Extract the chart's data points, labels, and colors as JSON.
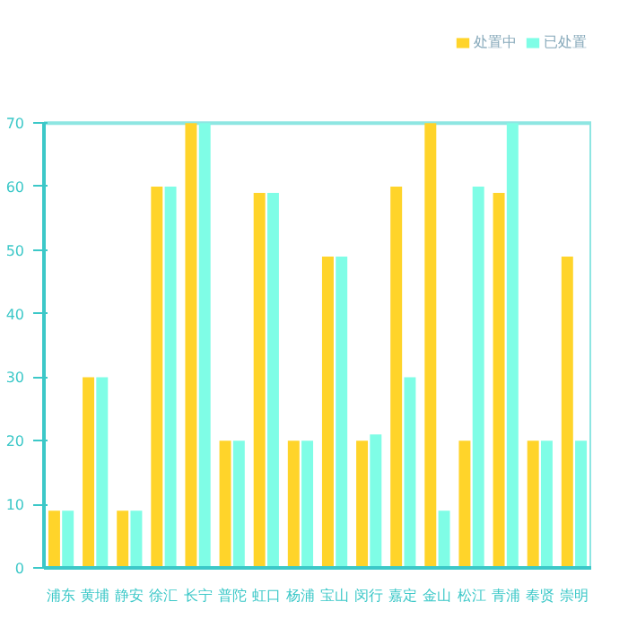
{
  "chart_data": {
    "type": "bar",
    "categories": [
      "浦东",
      "黄埔",
      "静安",
      "徐汇",
      "长宁",
      "普陀",
      "虹口",
      "杨浦",
      "宝山",
      "闵行",
      "嘉定",
      "金山",
      "松江",
      "青浦",
      "奉贤",
      "崇明"
    ],
    "series": [
      {
        "name": "处置中",
        "color": "#ffd42a",
        "values": [
          9,
          30,
          9,
          60,
          70,
          20,
          59,
          20,
          49,
          20,
          60,
          70,
          20,
          59,
          20,
          49
        ]
      },
      {
        "name": "已处置",
        "color": "#7ffde6",
        "values": [
          9,
          30,
          9,
          60,
          70,
          20,
          59,
          20,
          49,
          21,
          30,
          9,
          60,
          70,
          20,
          20
        ]
      }
    ],
    "ylim": [
      0,
      70
    ],
    "yticks": [
      0,
      10,
      20,
      30,
      40,
      50,
      60,
      70
    ],
    "grid": false,
    "legend": "top right"
  }
}
